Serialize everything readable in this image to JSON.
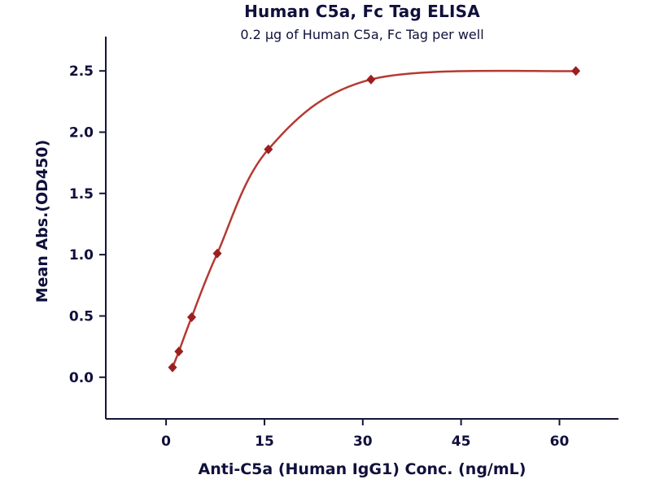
{
  "chart_data": {
    "type": "scatter",
    "title": "Human C5a, Fc Tag ELISA",
    "subtitle": "0.2 μg of Human C5a, Fc Tag per well",
    "xlabel": "Anti-C5a (Human IgG1) Conc. (ng/mL)",
    "ylabel": "Mean Abs.(OD450)",
    "x": [
      0.98,
      1.95,
      3.9,
      7.8,
      15.6,
      31.25,
      62.5
    ],
    "y": [
      0.08,
      0.21,
      0.49,
      1.01,
      1.86,
      2.43,
      2.5
    ],
    "x_tick_labels": [
      "0",
      "15",
      "30",
      "45",
      "60"
    ],
    "y_tick_labels": [
      "0.0",
      "0.5",
      "1.0",
      "1.5",
      "2.0",
      "2.5"
    ],
    "xlim": [
      -9.2,
      69.0
    ],
    "ylim": [
      -0.34,
      2.78
    ],
    "grid": false,
    "legend": "none",
    "curve_color": "#b43a32",
    "marker_color": "#9c1f1f",
    "axis_color": "#14143a",
    "text_color": "#10103c"
  }
}
